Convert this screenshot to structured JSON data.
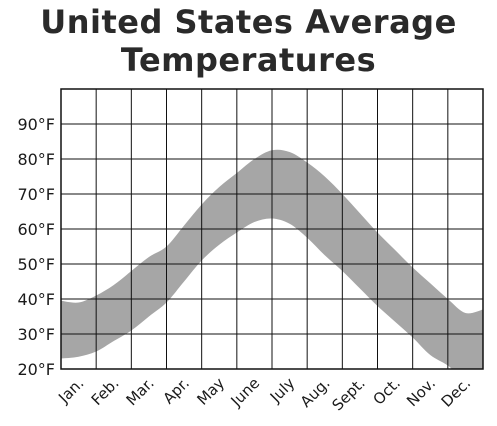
{
  "chart_data": {
    "type": "area",
    "title_line1": "United States Average",
    "title_line2": "Temperatures",
    "categories": [
      "Jan.",
      "Feb.",
      "Mar.",
      "Apr.",
      "May",
      "June",
      "July",
      "Aug.",
      "Sept.",
      "Oct.",
      "Nov.",
      "Dec."
    ],
    "y_tick_labels": [
      "20°F",
      "30°F",
      "40°F",
      "50°F",
      "60°F",
      "70°F",
      "80°F",
      "90°F"
    ],
    "y_ticks": [
      20,
      30,
      40,
      50,
      60,
      70,
      80,
      90
    ],
    "ylim": [
      20,
      100
    ],
    "grid": true,
    "band_color": "#a6a6a6",
    "x": [
      0,
      0.5,
      1,
      1.5,
      2,
      2.5,
      3,
      3.5,
      4,
      4.5,
      5,
      5.5,
      6,
      6.5,
      7,
      7.5,
      8,
      8.5,
      9,
      9.5,
      10,
      10.5,
      11,
      11.5,
      12
    ],
    "series": [
      {
        "values": [
          39.5,
          39,
          41,
          44,
          48,
          52,
          55,
          61,
          67,
          72,
          76,
          80,
          82.5,
          82,
          79,
          75,
          70,
          64.5,
          59,
          54,
          49,
          44.5,
          40,
          36,
          37
        ]
      },
      {
        "values": [
          23,
          23.5,
          25,
          28,
          31,
          35,
          39,
          45,
          51,
          55.5,
          59,
          62,
          63,
          61.5,
          57.5,
          52.5,
          48,
          43,
          38,
          33.5,
          29,
          24,
          21,
          17,
          18
        ]
      }
    ]
  }
}
